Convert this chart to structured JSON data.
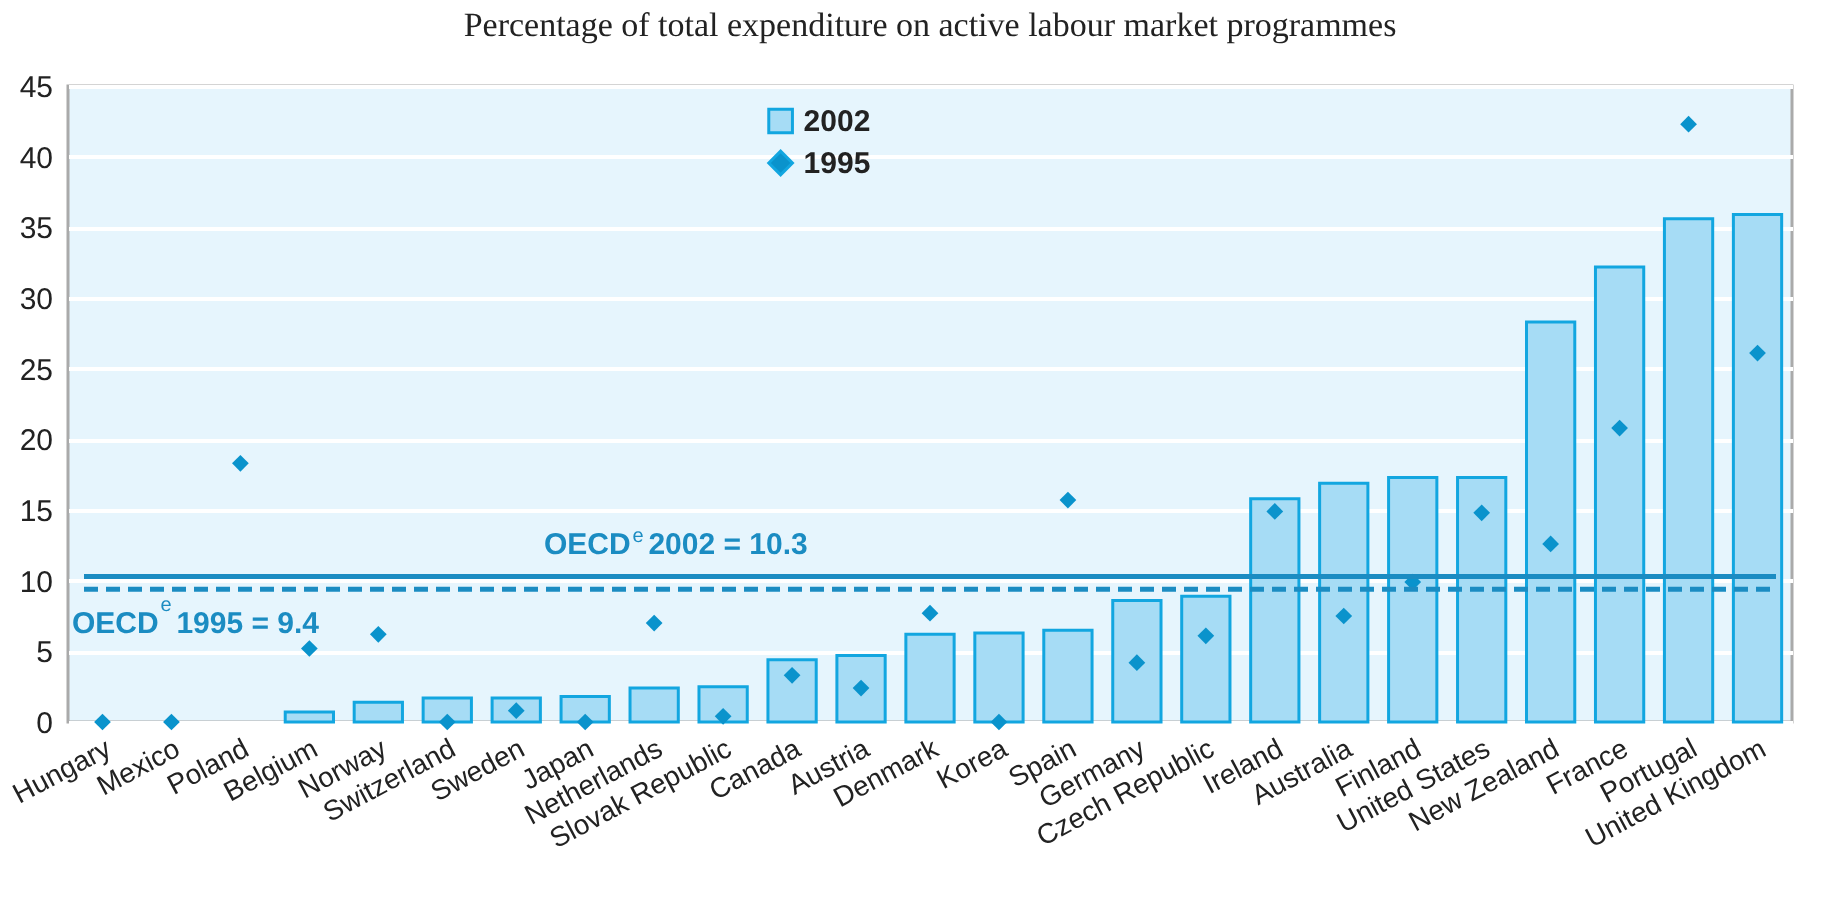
{
  "chart_data": {
    "type": "bar",
    "title": "Percentage of total expenditure on active labour market programmes",
    "categories": [
      "Hungary",
      "Mexico",
      "Poland",
      "Belgium",
      "Norway",
      "Switzerland",
      "Sweden",
      "Japan",
      "Netherlands",
      "Slovak Republic",
      "Canada",
      "Austria",
      "Denmark",
      "Korea",
      "Spain",
      "Germany",
      "Czech Republic",
      "Ireland",
      "Australia",
      "Finland",
      "United States",
      "New Zealand",
      "France",
      "Portugal",
      "United Kingdom"
    ],
    "series": [
      {
        "name": "2002",
        "color": "#a6dcf5",
        "values": [
          null,
          null,
          null,
          0.7,
          1.4,
          1.7,
          1.7,
          1.8,
          2.4,
          2.5,
          4.4,
          4.7,
          6.2,
          6.3,
          6.5,
          8.6,
          8.9,
          15.8,
          16.9,
          17.3,
          17.3,
          28.3,
          32.2,
          35.6,
          35.9
        ]
      },
      {
        "name": "1995",
        "type": "scatter",
        "color": "#0a93cc",
        "values": [
          0,
          0,
          18.3,
          5.2,
          6.2,
          0,
          0.8,
          0,
          7.0,
          0.4,
          3.3,
          2.4,
          7.7,
          0,
          15.7,
          4.2,
          6.1,
          14.9,
          7.5,
          9.9,
          14.8,
          12.6,
          20.8,
          42.3,
          26.1
        ]
      }
    ],
    "marker": "diamond",
    "ylim": [
      0,
      45
    ],
    "yticks": [
      0,
      5,
      10,
      15,
      20,
      25,
      30,
      35,
      40,
      45
    ],
    "grid": "y",
    "legend": "top",
    "ref_lines": [
      {
        "axis": "y",
        "value": 10.3,
        "label": "OECD$^{e}$ 2002 = 10.3",
        "color": "#1b8cc2",
        "line_style": "solid"
      },
      {
        "axis": "y",
        "value": 9.4,
        "label": "OECD$^{e}$ 1995 = 9.4",
        "color": "#1b8cc2",
        "line_style": "dashed"
      }
    ]
  }
}
